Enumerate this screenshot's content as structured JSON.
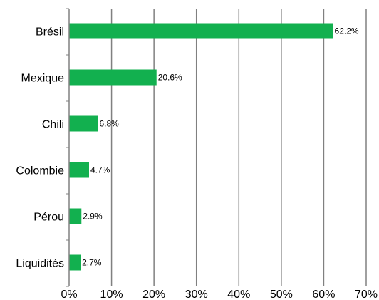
{
  "chart_data": {
    "type": "bar",
    "orientation": "horizontal",
    "categories": [
      "Brésil",
      "Mexique",
      "Chili",
      "Colombie",
      "Pérou",
      "Liquidités"
    ],
    "values": [
      62.2,
      20.6,
      6.8,
      4.7,
      2.9,
      2.7
    ],
    "value_labels": [
      "62.2%",
      "20.6%",
      "6.8%",
      "4.7%",
      "2.9%",
      "2.7%"
    ],
    "x_ticks": [
      "0%",
      "10%",
      "20%",
      "30%",
      "40%",
      "50%",
      "60%",
      "70%"
    ],
    "xlim": [
      0,
      70
    ],
    "grid": "vertical",
    "title": "",
    "xlabel": "",
    "ylabel": "",
    "colors": {
      "bar": "#12b04f",
      "grid": "#808080",
      "axis": "#808080",
      "text": "#000000"
    }
  }
}
